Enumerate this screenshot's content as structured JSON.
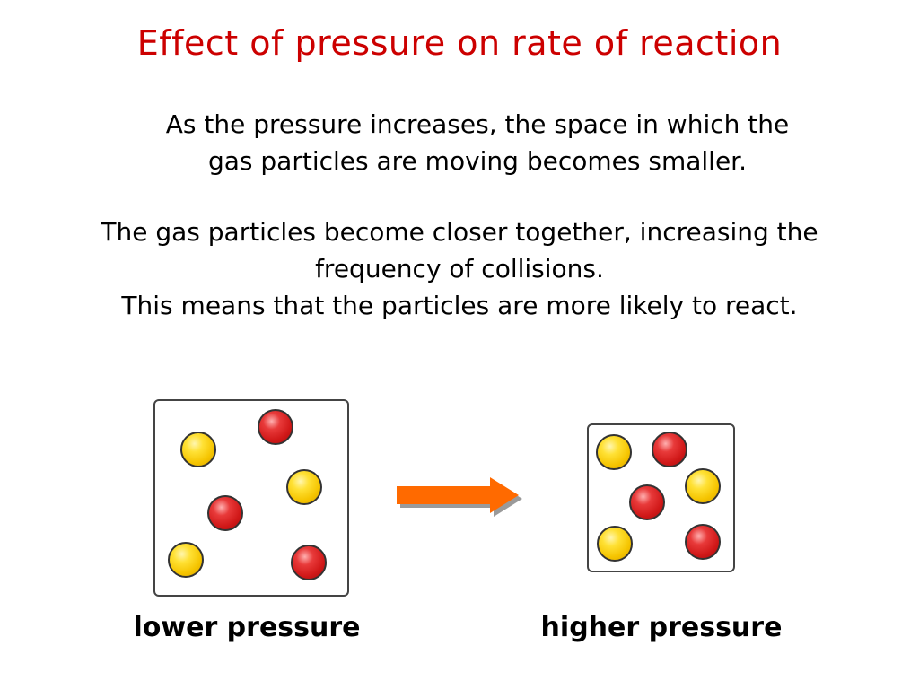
{
  "title": "Effect of pressure on rate of reaction",
  "paragraph1": {
    "line1": "As the pressure increases, the space in which the",
    "line2": "gas particles are moving becomes smaller."
  },
  "paragraph2": {
    "line1": "The gas particles become closer together, increasing the",
    "line2": "frequency of collisions.",
    "line3": "This means that the particles are more likely to react."
  },
  "colors": {
    "title": "#cc0000",
    "yellow_particle": "#f5c400",
    "red_particle": "#d01818",
    "arrow": "#ff6a00"
  },
  "diagram": {
    "low_pressure": {
      "caption": "lower pressure",
      "yellow_count": 3,
      "red_count": 3
    },
    "high_pressure": {
      "caption": "higher pressure",
      "yellow_count": 3,
      "red_count": 3
    },
    "arrow_icon": "right-arrow-icon"
  }
}
